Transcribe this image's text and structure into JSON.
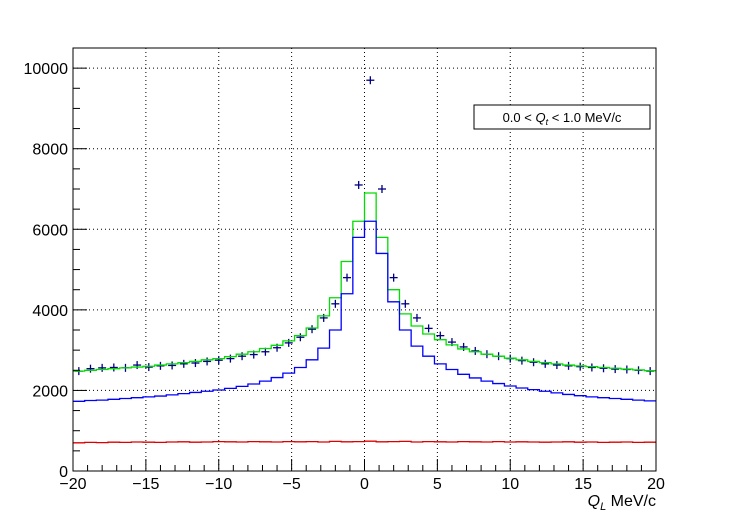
{
  "chart_data": {
    "type": "histogram",
    "xlabel_var": "Q",
    "xlabel_sub": "L",
    "xlabel_unit": " MeV/c",
    "xlim": [
      -20,
      20
    ],
    "ylim": [
      0,
      10500
    ],
    "x_ticks": [
      -20,
      -15,
      -10,
      -5,
      0,
      5,
      10,
      15,
      20
    ],
    "x_tick_labels": [
      "−20",
      "−15",
      "−10",
      "−5",
      "0",
      "5",
      "10",
      "15",
      "20"
    ],
    "y_ticks": [
      0,
      2000,
      4000,
      6000,
      8000,
      10000
    ],
    "y_tick_labels": [
      "0",
      "2000",
      "4000",
      "6000",
      "8000",
      "10000"
    ],
    "grid": true,
    "legend": {
      "pre": "0.0 < ",
      "var": "Q",
      "sub": "t",
      "post": " < 1.0 MeV/c",
      "placement": "top-right"
    },
    "bin_width": 0.8,
    "bin_centers": [
      -19.6,
      -18.8,
      -18.0,
      -17.2,
      -16.4,
      -15.6,
      -14.8,
      -14.0,
      -13.2,
      -12.4,
      -11.6,
      -10.8,
      -10.0,
      -9.2,
      -8.4,
      -7.6,
      -6.8,
      -6.0,
      -5.2,
      -4.4,
      -3.6,
      -2.8,
      -2.0,
      -1.2,
      -0.4,
      0.4,
      1.2,
      2.0,
      2.8,
      3.6,
      4.4,
      5.2,
      6.0,
      6.8,
      7.6,
      8.4,
      9.2,
      10.0,
      10.8,
      11.6,
      12.4,
      13.2,
      14.0,
      14.8,
      15.6,
      16.4,
      17.2,
      18.0,
      18.8,
      19.6
    ],
    "series": [
      {
        "render": "points",
        "color": "#000080",
        "values": [
          2480,
          2540,
          2560,
          2570,
          2560,
          2630,
          2580,
          2610,
          2620,
          2660,
          2680,
          2720,
          2750,
          2790,
          2850,
          2890,
          2960,
          3060,
          3180,
          3320,
          3520,
          3800,
          4150,
          4800,
          7100,
          9700,
          7000,
          4800,
          4150,
          3800,
          3540,
          3360,
          3200,
          3080,
          2980,
          2900,
          2850,
          2790,
          2740,
          2700,
          2660,
          2630,
          2610,
          2590,
          2570,
          2550,
          2530,
          2520,
          2500,
          2480
        ]
      },
      {
        "render": "step",
        "color": "#00dd00",
        "values": [
          2480,
          2500,
          2520,
          2540,
          2560,
          2580,
          2600,
          2630,
          2660,
          2690,
          2720,
          2760,
          2790,
          2840,
          2900,
          2960,
          3040,
          3120,
          3230,
          3360,
          3550,
          3850,
          4300,
          5200,
          6200,
          6900,
          5800,
          4500,
          3900,
          3600,
          3400,
          3260,
          3130,
          3030,
          2960,
          2900,
          2850,
          2800,
          2760,
          2720,
          2690,
          2660,
          2630,
          2610,
          2590,
          2570,
          2550,
          2530,
          2510,
          2490
        ]
      },
      {
        "render": "step",
        "color": "#0000ff",
        "values": [
          1730,
          1750,
          1760,
          1780,
          1800,
          1820,
          1840,
          1860,
          1890,
          1920,
          1950,
          1980,
          2010,
          2050,
          2100,
          2160,
          2230,
          2320,
          2430,
          2570,
          2760,
          3050,
          3500,
          4400,
          5800,
          6200,
          5400,
          4200,
          3500,
          3100,
          2850,
          2660,
          2520,
          2400,
          2310,
          2230,
          2170,
          2110,
          2060,
          2020,
          1980,
          1940,
          1900,
          1870,
          1840,
          1820,
          1800,
          1780,
          1760,
          1740
        ]
      },
      {
        "render": "step",
        "color": "#dd0000",
        "values": [
          700,
          710,
          705,
          715,
          710,
          720,
          715,
          710,
          720,
          725,
          715,
          720,
          730,
          725,
          720,
          730,
          725,
          720,
          730,
          725,
          730,
          720,
          735,
          725,
          730,
          740,
          725,
          730,
          735,
          720,
          730,
          725,
          720,
          730,
          725,
          720,
          730,
          720,
          725,
          720,
          715,
          720,
          725,
          715,
          720,
          710,
          715,
          720,
          710,
          715
        ]
      }
    ]
  }
}
